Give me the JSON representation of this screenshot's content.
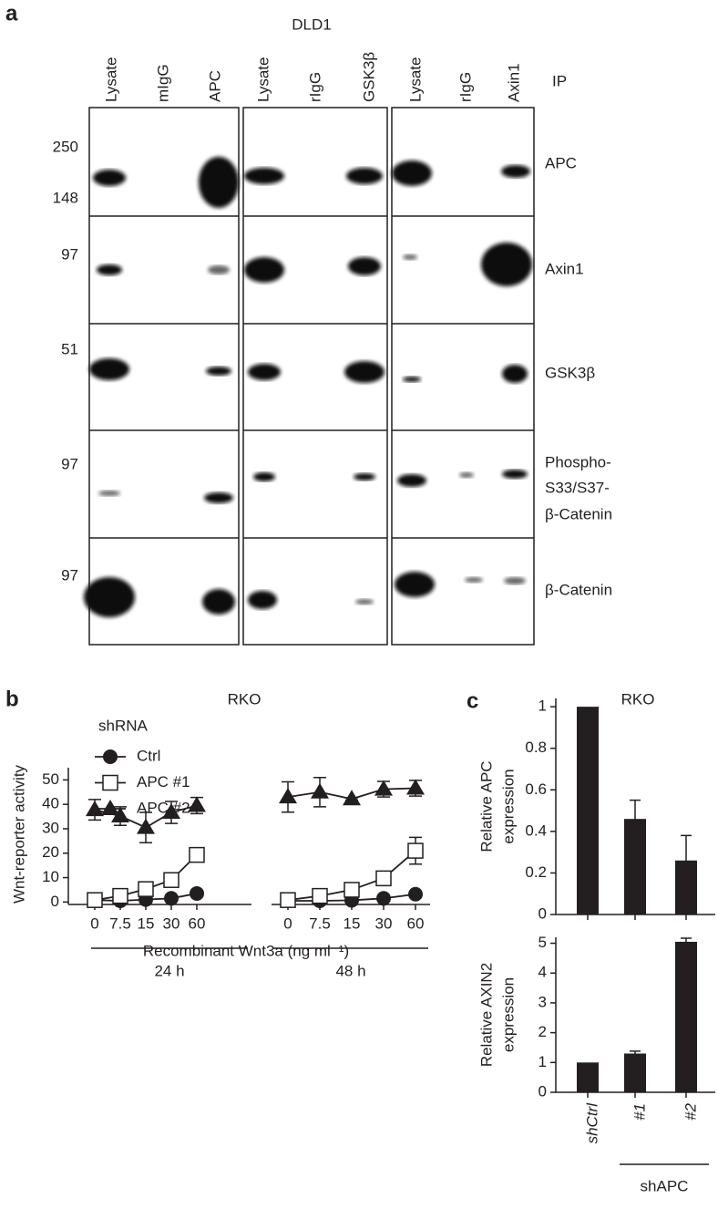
{
  "panel_a": {
    "label": "a",
    "title": "DLD1",
    "ip_label": "IP",
    "lanes": [
      "Lysate",
      "mIgG",
      "APC",
      "Lysate",
      "rIgG",
      "GSK3β",
      "Lysate",
      "rIgG",
      "Axin1"
    ],
    "mw_markers": [
      250,
      148,
      97,
      51,
      97,
      97
    ],
    "blots": [
      [
        "APC"
      ],
      [
        "Axin1"
      ],
      [
        "GSK3β"
      ],
      [
        "Phospho-",
        "S33/S37-",
        "β-Catenin"
      ],
      [
        "β-Catenin"
      ]
    ]
  },
  "chart_data": [
    {
      "type": "line",
      "panel": "b",
      "title": "RKO",
      "legend_title": "shRNA",
      "x_label": "Recombinant Wnt3a (ng ml⁻¹)",
      "y_label": "Wnt-reporter activity",
      "categories": [
        "0",
        "7.5",
        "15",
        "30",
        "60",
        null,
        "0",
        "7.5",
        "15",
        "30",
        "60"
      ],
      "groups": [
        "24 h",
        "48 h"
      ],
      "ylim": [
        -1,
        55
      ],
      "yticks": [
        0,
        10,
        20,
        30,
        40,
        50
      ],
      "series": [
        {
          "name": "Ctrl",
          "color": "#231f20",
          "marker": "circle",
          "values": [
            0.8,
            0.5,
            1,
            1.5,
            3.5,
            null,
            0.5,
            0.5,
            0.7,
            1.5,
            3.2
          ],
          "errors": [
            0.3,
            0.3,
            0.3,
            0.4,
            0.6,
            null,
            0.3,
            0.3,
            0.3,
            0.4,
            0.5
          ]
        },
        {
          "name": "APC #1",
          "color": "#231f20",
          "marker": "square",
          "values": [
            0.8,
            2.5,
            5.3,
            9,
            19.3,
            null,
            0.8,
            2.5,
            5,
            9.7,
            21
          ],
          "errors": [
            0.5,
            0.5,
            0.5,
            0.8,
            1.7,
            null,
            0.5,
            0.5,
            0.7,
            2.5,
            5.5
          ]
        },
        {
          "name": "APC #2",
          "color": "#231f20",
          "marker": "triangle",
          "values": [
            37.8,
            35.2,
            30.5,
            36.7,
            39.5,
            null,
            43,
            45,
            42.2,
            46.2,
            46.6
          ],
          "errors": [
            4.2,
            3.8,
            6.2,
            4.5,
            3.3,
            null,
            6.2,
            6,
            0.5,
            3.2,
            3.2
          ]
        }
      ]
    },
    {
      "type": "bar",
      "panel": "c",
      "title": "RKO",
      "y_label": [
        "Relative APC",
        "expression"
      ],
      "values": [
        1,
        0.46,
        0.26
      ],
      "errors": [
        null,
        0.09,
        0.12
      ],
      "color": "#231f20",
      "ylim": [
        0,
        1.04
      ],
      "yticks": [
        0,
        0.2,
        0.4,
        0.6,
        0.8,
        1
      ]
    },
    {
      "type": "bar",
      "y_label": [
        "Relative AXIN2",
        "expression"
      ],
      "categories": [
        "shCtrl",
        "#1",
        "#2"
      ],
      "group": "shAPC",
      "values": [
        1,
        1.3,
        5.05
      ],
      "errors": [
        null,
        0.08,
        0.12
      ],
      "color": "#231f20",
      "ylim": [
        0,
        5.2
      ],
      "yticks": [
        0,
        1,
        2,
        3,
        4,
        5
      ]
    }
  ]
}
